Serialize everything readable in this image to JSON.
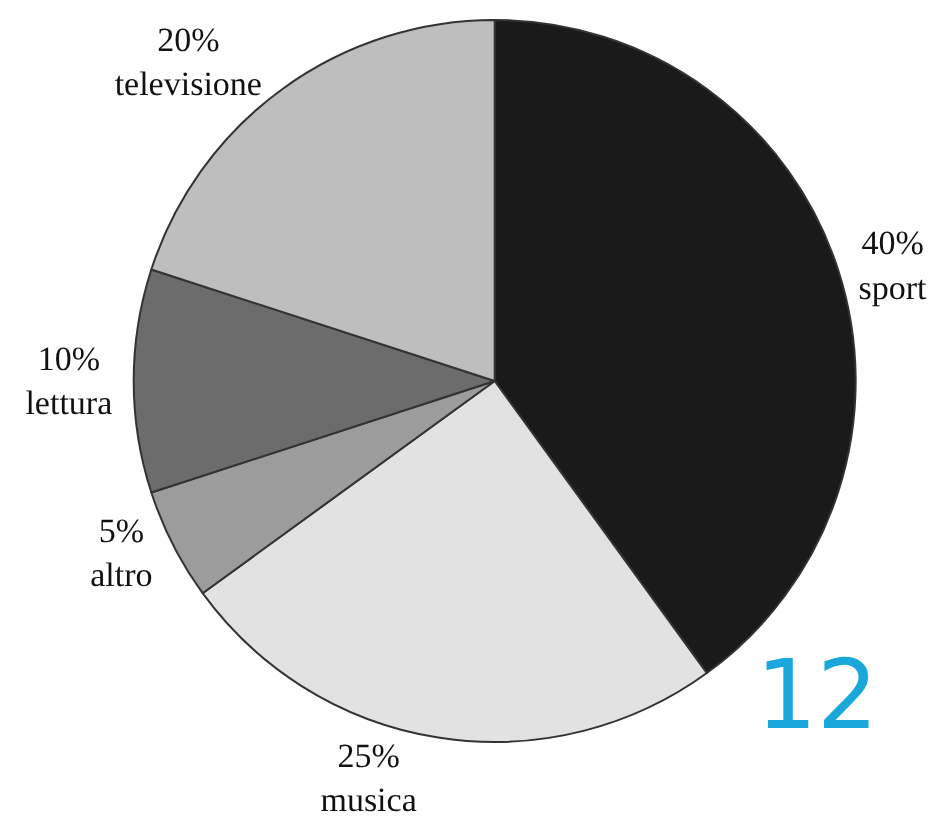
{
  "chart_data": {
    "type": "pie",
    "categories": [
      "sport",
      "musica",
      "altro",
      "lettura",
      "televisione"
    ],
    "values": [
      40,
      25,
      5,
      10,
      20
    ],
    "value_labels": [
      "40%",
      "25%",
      "5%",
      "10%",
      "20%"
    ],
    "colors": [
      "#1a1a1a",
      "#e2e2e2",
      "#9c9c9c",
      "#6c6c6c",
      "#bebebe"
    ],
    "legend": false,
    "annotations": [
      "12"
    ]
  }
}
